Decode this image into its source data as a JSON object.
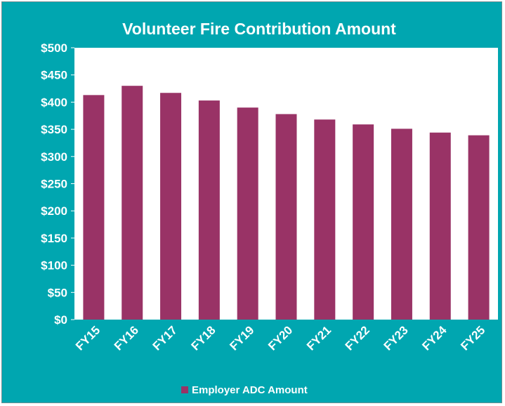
{
  "chart_data": {
    "type": "bar",
    "title": "Volunteer Fire Contribution Amount",
    "xlabel": "",
    "ylabel": "",
    "categories": [
      "FY15",
      "FY16",
      "FY17",
      "FY18",
      "FY19",
      "FY20",
      "FY21",
      "FY22",
      "FY23",
      "FY24",
      "FY25"
    ],
    "series": [
      {
        "name": "Employer ADC Amount",
        "color": "#993366",
        "values": [
          413,
          430,
          417,
          403,
          390,
          378,
          368,
          359,
          351,
          344,
          339
        ]
      }
    ],
    "ylim": [
      0,
      500
    ],
    "yticks": [
      0,
      50,
      100,
      150,
      200,
      250,
      300,
      350,
      400,
      450,
      500
    ],
    "ytick_labels": [
      "$0",
      "$50",
      "$100",
      "$150",
      "$200",
      "$250",
      "$300",
      "$350",
      "$400",
      "$450",
      "$500"
    ],
    "grid": false,
    "legend_position": "bottom-center",
    "colors": {
      "background": "#00A6B0",
      "plot_area": "#ffffff",
      "bar": "#993366",
      "text": "#ffffff"
    }
  }
}
